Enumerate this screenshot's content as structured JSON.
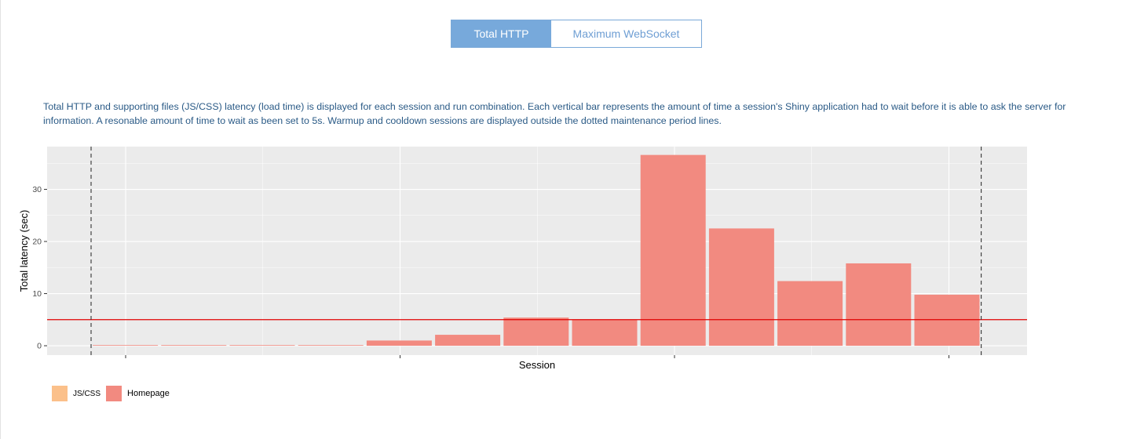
{
  "tabs": [
    {
      "label": "Total HTTP",
      "active": true
    },
    {
      "label": "Maximum WebSocket",
      "active": false
    }
  ],
  "description": "Total HTTP and supporting files (JS/CSS) latency (load time) is displayed for each session and run combination. Each vertical bar represents the amount of time a session's Shiny application had to wait before it is able to ask the server for information. A resonable amount of time to wait as been set to 5s. Warmup and cooldown sessions are displayed outside the dotted maintenance period lines.",
  "colors": {
    "homepage": "#f28a80",
    "jscss": "#fbc08a",
    "threshold": "#e00000",
    "panel": "#ebebeb",
    "accent": "#77a9db"
  },
  "chart_data": {
    "type": "bar",
    "title": "",
    "xlabel": "Session",
    "ylabel": "Total latency (sec)",
    "ylim": [
      -1.8,
      38.2
    ],
    "yticks": [
      0,
      10,
      20,
      30
    ],
    "x_tick_labels": [
      "",
      "",
      "",
      ""
    ],
    "sessions": [
      1,
      2,
      3,
      4,
      5,
      6,
      7,
      8,
      9,
      10,
      11,
      12,
      13
    ],
    "series": [
      {
        "name": "JS/CSS",
        "values": [
          0,
          0,
          0,
          0,
          0,
          0,
          0,
          0,
          0,
          0,
          0,
          0,
          0
        ]
      },
      {
        "name": "Homepage",
        "values": [
          0.1,
          0.1,
          0.1,
          0.1,
          1.0,
          2.1,
          5.4,
          5.0,
          36.6,
          22.5,
          12.4,
          15.8,
          9.8
        ]
      }
    ],
    "threshold": 5,
    "maintenance_period": {
      "start_session": 1,
      "end_session": 13
    },
    "legend_position": "bottom-left",
    "grid": true
  }
}
